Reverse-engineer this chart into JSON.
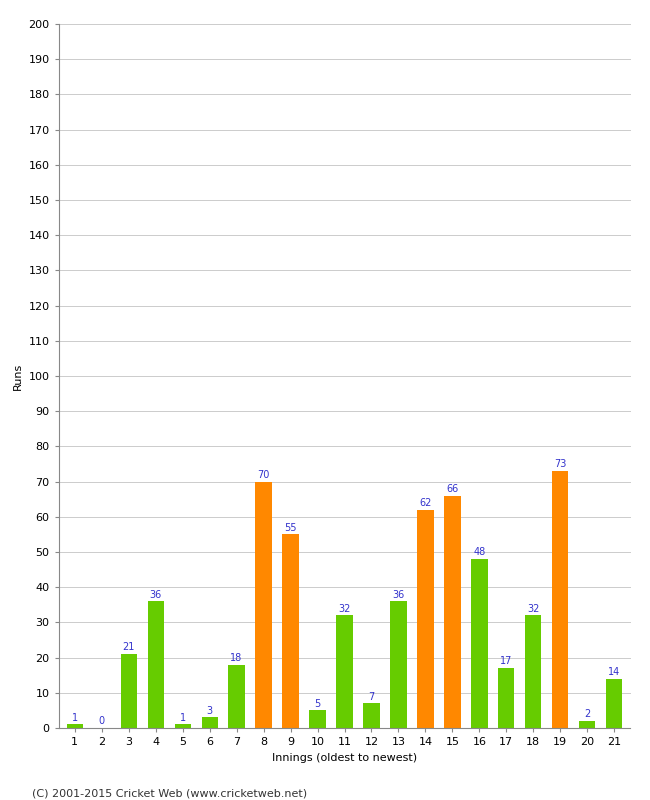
{
  "title": "",
  "xlabel": "Innings (oldest to newest)",
  "ylabel": "Runs",
  "values": [
    1,
    0,
    21,
    36,
    1,
    3,
    18,
    70,
    55,
    5,
    32,
    7,
    36,
    62,
    66,
    48,
    17,
    32,
    73,
    2,
    14
  ],
  "innings": [
    1,
    2,
    3,
    4,
    5,
    6,
    7,
    8,
    9,
    10,
    11,
    12,
    13,
    14,
    15,
    16,
    17,
    18,
    19,
    20,
    21
  ],
  "highlight_threshold": 50,
  "bar_color_normal": "#66cc00",
  "bar_color_highlight": "#ff8800",
  "label_color": "#3333cc",
  "ylim": [
    0,
    200
  ],
  "yticks": [
    0,
    10,
    20,
    30,
    40,
    50,
    60,
    70,
    80,
    90,
    100,
    110,
    120,
    130,
    140,
    150,
    160,
    170,
    180,
    190,
    200
  ],
  "background_color": "#ffffff",
  "grid_color": "#cccccc",
  "footer": "(C) 2001-2015 Cricket Web (www.cricketweb.net)",
  "label_fontsize": 7,
  "axis_label_fontsize": 8,
  "tick_fontsize": 8,
  "footer_fontsize": 8,
  "bar_width": 0.6
}
